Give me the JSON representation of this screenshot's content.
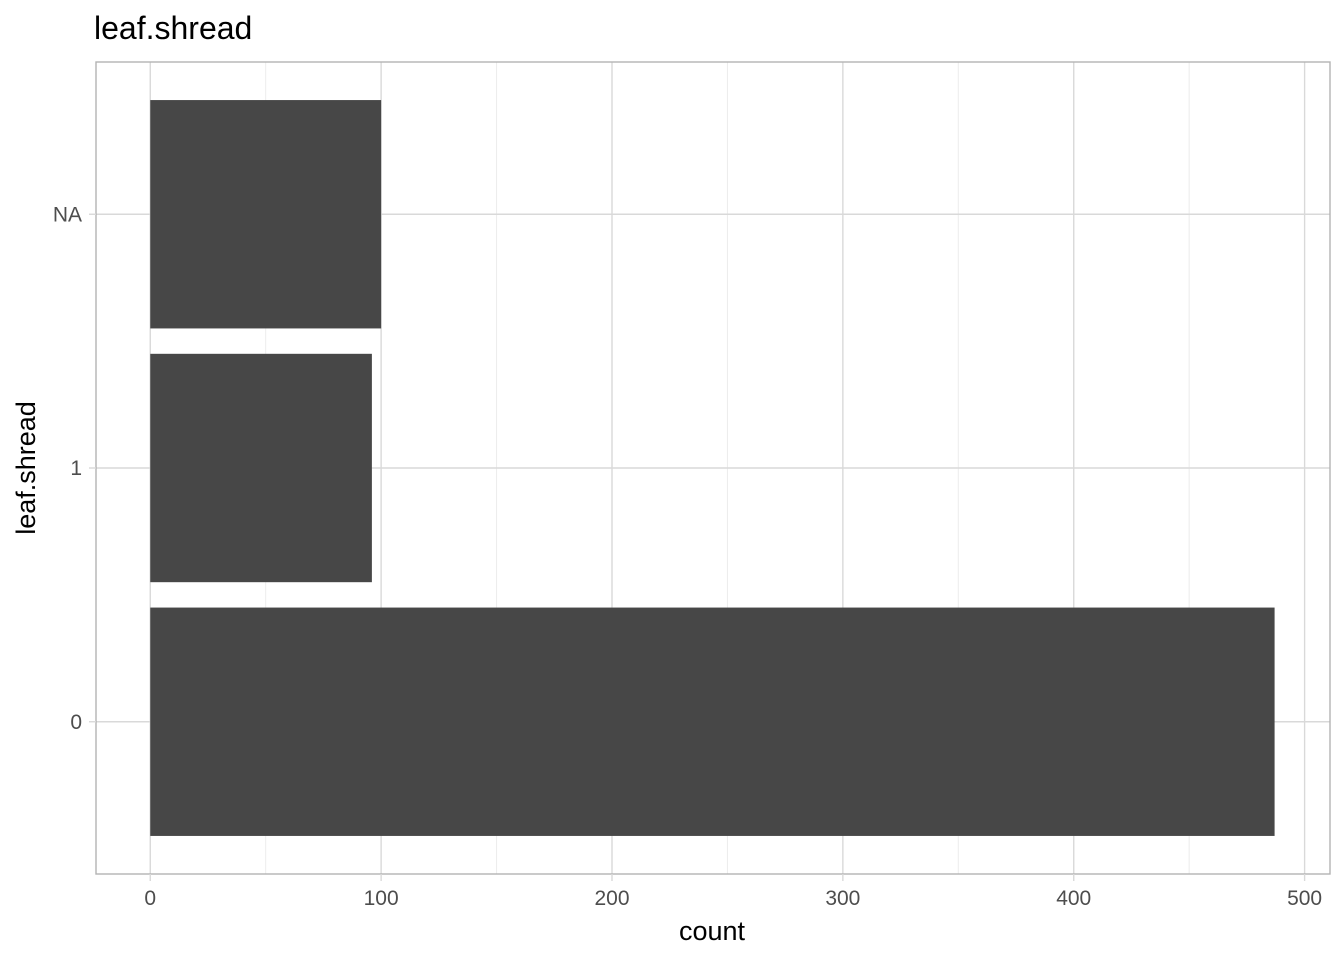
{
  "chart_data": {
    "type": "bar",
    "orientation": "horizontal",
    "title": "leaf.shread",
    "xlabel": "count",
    "ylabel": "leaf.shread",
    "categories": [
      "0",
      "1",
      "NA"
    ],
    "values": [
      487,
      96,
      100
    ],
    "xlim": [
      -23.5,
      511
    ],
    "x_ticks": [
      0,
      100,
      200,
      300,
      400,
      500
    ],
    "x_minor_ticks": [
      50,
      150,
      250,
      350,
      450
    ],
    "grid": true,
    "legend": "none",
    "colors": {
      "bar": "#474747",
      "grid_major": "#d9d9d9",
      "grid_minor": "#ececec",
      "panel_border": "#b3b3b3",
      "tick_label": "#4d4d4d"
    }
  }
}
